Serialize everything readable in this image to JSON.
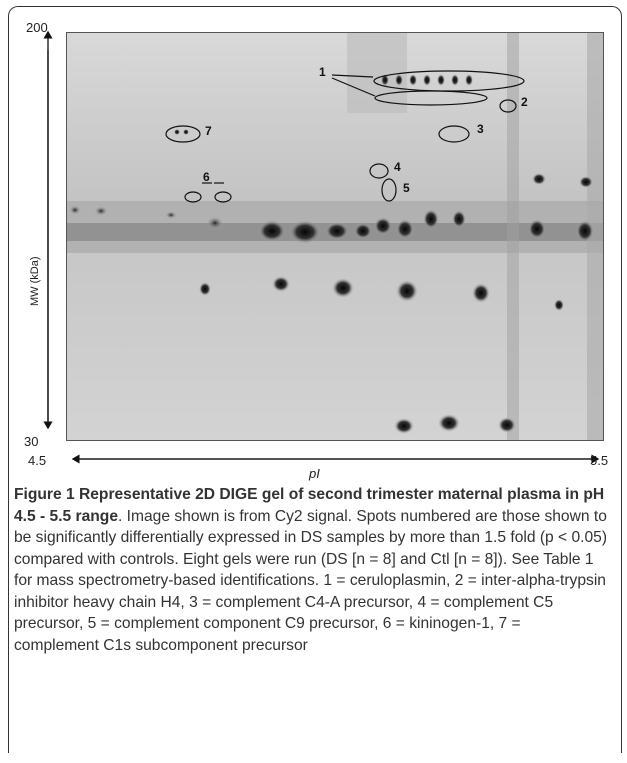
{
  "figure": {
    "axis": {
      "y_top": "200",
      "y_bottom": "30",
      "y_title": "MW (kDa)",
      "x_left": "4.5",
      "x_right": "5.5",
      "x_title": "pI"
    },
    "spot_labels": [
      "1",
      "2",
      "3",
      "4",
      "5",
      "6",
      "7"
    ]
  },
  "caption": {
    "title": "Figure 1 Representative 2D DIGE gel of second trimester maternal plasma in pH 4.5 - 5.5 range",
    "body": ". Image shown is from Cy2 signal. Spots numbered are those shown to be significantly differentially expressed in DS samples by more than 1.5 fold (p < 0.05) compared with controls. Eight gels were run (DS [n = 8] and Ctl [n = 8]). See Table 1 for mass spectrometry-based identifications. 1 = ceruloplasmin, 2 = inter-alpha-trypsin inhibitor heavy chain H4, 3 = complement C4-A precursor, 4 = complement C5 precursor, 5 = complement component C9 precursor, 6 = kininogen-1, 7 = complement C1s subcomponent precursor"
  }
}
